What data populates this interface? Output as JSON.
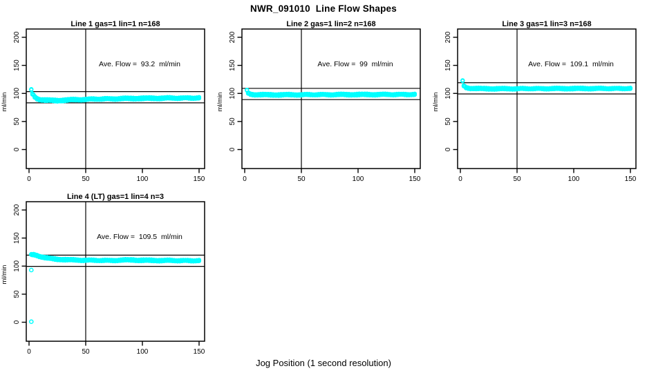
{
  "page": {
    "main_title": "NWR_091010  Line Flow Shapes",
    "bottom_xlabel": "Jog Position (1 second resolution)",
    "background_color": "#ffffff",
    "axis_color": "#000000",
    "point_color": "#00ffff"
  },
  "chart_data": [
    {
      "type": "scatter",
      "title": "Line 1 gas=1 lin=1 n=168",
      "n": 168,
      "ave_flow": 93.2,
      "ave_label": "Ave. Flow =  93.2  ml/min",
      "ylabel": "ml/min",
      "x_ticks": [
        0,
        50,
        100,
        150
      ],
      "y_ticks": [
        0,
        50,
        100,
        150,
        200
      ],
      "xlim": [
        -3,
        155
      ],
      "ylim": [
        -34,
        215
      ],
      "vline_x": 50,
      "hline_upper": 103.2,
      "hline_lower": 83.2,
      "x_start": 2,
      "x_end": 150,
      "spread": 1.8,
      "profile": [
        [
          2,
          106
        ],
        [
          3,
          99
        ],
        [
          5,
          94
        ],
        [
          7,
          91
        ],
        [
          10,
          89
        ],
        [
          15,
          87.8
        ],
        [
          25,
          87.4
        ],
        [
          40,
          88.8
        ],
        [
          60,
          90
        ],
        [
          90,
          91
        ],
        [
          120,
          91.6
        ],
        [
          150,
          92
        ]
      ],
      "extra_points": []
    },
    {
      "type": "scatter",
      "title": "Line 2 gas=1 lin=2 n=168",
      "n": 168,
      "ave_flow": 99,
      "ave_label": "Ave. Flow =  99  ml/min",
      "ylabel": "ml/min",
      "x_ticks": [
        0,
        50,
        100,
        150
      ],
      "y_ticks": [
        0,
        50,
        100,
        150,
        200
      ],
      "xlim": [
        -3,
        155
      ],
      "ylim": [
        -34,
        215
      ],
      "vline_x": 50,
      "hline_upper": 109,
      "hline_lower": 89,
      "x_start": 2,
      "x_end": 150,
      "spread": 1.6,
      "profile": [
        [
          2,
          105
        ],
        [
          3,
          100.5
        ],
        [
          5,
          98.8
        ],
        [
          8,
          98
        ],
        [
          15,
          97.6
        ],
        [
          30,
          97.5
        ],
        [
          60,
          97.8
        ],
        [
          100,
          98
        ],
        [
          150,
          98.2
        ]
      ],
      "extra_points": []
    },
    {
      "type": "scatter",
      "title": "Line 3 gas=1 lin=3 n=168",
      "n": 168,
      "ave_flow": 109.1,
      "ave_label": "Ave. Flow =  109.1  ml/min",
      "ylabel": "ml/min",
      "x_ticks": [
        0,
        50,
        100,
        150
      ],
      "y_ticks": [
        0,
        50,
        100,
        150,
        200
      ],
      "xlim": [
        -3,
        155
      ],
      "ylim": [
        -34,
        215
      ],
      "vline_x": 50,
      "hline_upper": 119.1,
      "hline_lower": 99.1,
      "x_start": 2,
      "x_end": 150,
      "spread": 1.5,
      "profile": [
        [
          2,
          122
        ],
        [
          3,
          113.5
        ],
        [
          5,
          110.5
        ],
        [
          8,
          109.3
        ],
        [
          15,
          108.6
        ],
        [
          30,
          108.3
        ],
        [
          60,
          108.5
        ],
        [
          100,
          108.7
        ],
        [
          150,
          108.8
        ]
      ],
      "extra_points": []
    },
    {
      "type": "scatter",
      "title": "Line 4 (LT) gas=1 lin=4 n=3",
      "n": 3,
      "ave_flow": 109.5,
      "ave_label": "Ave. Flow =  109.5  ml/min",
      "ylabel": "ml/min",
      "x_ticks": [
        0,
        50,
        100,
        150
      ],
      "y_ticks": [
        0,
        50,
        100,
        150,
        200
      ],
      "xlim": [
        -3,
        155
      ],
      "ylim": [
        -34,
        215
      ],
      "vline_x": 50,
      "hline_upper": 119.5,
      "hline_lower": 99.5,
      "x_start": 2,
      "x_end": 150,
      "spread": 1.6,
      "profile": [
        [
          2,
          120
        ],
        [
          4,
          120.6
        ],
        [
          7,
          119.2
        ],
        [
          10,
          117
        ],
        [
          14,
          115
        ],
        [
          18,
          113.8
        ],
        [
          25,
          112.3
        ],
        [
          35,
          111.2
        ],
        [
          50,
          110.5
        ],
        [
          70,
          110
        ],
        [
          92,
          111.2
        ],
        [
          96,
          110.4
        ],
        [
          120,
          110
        ],
        [
          150,
          109.7
        ]
      ],
      "extra_points": [
        [
          2,
          93
        ],
        [
          2,
          1
        ]
      ]
    }
  ]
}
